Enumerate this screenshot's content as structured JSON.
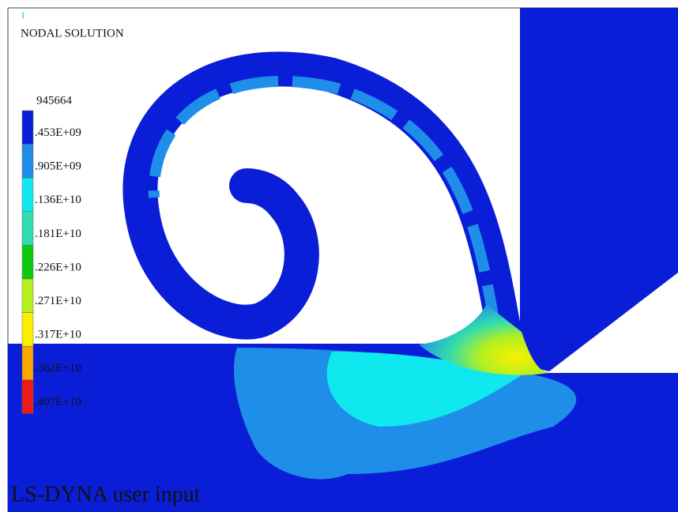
{
  "header": {
    "marker": "1",
    "title": "NODAL SOLUTION"
  },
  "legend": {
    "min_label": "945664",
    "labels": [
      ".453E+09",
      ".905E+09",
      ".136E+10",
      ".181E+10",
      ".226E+10",
      ".271E+10",
      ".317E+10",
      ".362E+10",
      ".407E+10"
    ],
    "colors": [
      "#0a1ed8",
      "#1e8ee8",
      "#10e8f0",
      "#30dcb0",
      "#10c810",
      "#b4f020",
      "#f8f000",
      "#f8a800",
      "#f01818"
    ]
  },
  "footer": {
    "text": "LS-DYNA user input"
  }
}
